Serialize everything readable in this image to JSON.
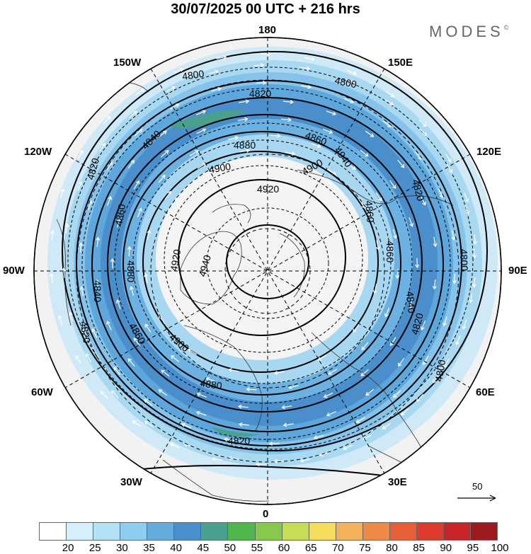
{
  "title": "30/07/2025  00 UTC  + 216 hrs",
  "brand": "MODES",
  "brand_mark": "©",
  "longitude_labels": {
    "top": "180",
    "bottom": "0",
    "left": "90W",
    "right": "90E",
    "upper_left_1": "150W",
    "upper_left_2": "120W",
    "lower_left_1": "60W",
    "lower_left_2": "30W",
    "upper_right_1": "150E",
    "upper_right_2": "120E",
    "lower_right_1": "60E",
    "lower_right_2": "30E"
  },
  "contours": [
    {
      "value": 4800,
      "label": "4800"
    },
    {
      "value": 4820,
      "label": "4820"
    },
    {
      "value": 4840,
      "label": "4840"
    },
    {
      "value": 4860,
      "label": "4860"
    },
    {
      "value": 4880,
      "label": "4880"
    },
    {
      "value": 4900,
      "label": "4900"
    },
    {
      "value": 4920,
      "label": "4920"
    },
    {
      "value": 4940,
      "label": "4940"
    }
  ],
  "wind_reference": {
    "value": "50"
  },
  "legend": {
    "labels": [
      "20",
      "25",
      "30",
      "35",
      "40",
      "45",
      "50",
      "55",
      "60",
      "65",
      "70",
      "75",
      "80",
      "85",
      "90",
      "95",
      "100"
    ],
    "colors": [
      "#ffffff",
      "#d6f0fb",
      "#b3e2f7",
      "#8dcdef",
      "#63ace0",
      "#4a8fcb",
      "#49a08c",
      "#4fb84c",
      "#86c94b",
      "#c8dc55",
      "#f6dc5d",
      "#f2b25a",
      "#ee8a46",
      "#e75e38",
      "#dc3b2e",
      "#c72529",
      "#9c1c1e"
    ]
  }
}
